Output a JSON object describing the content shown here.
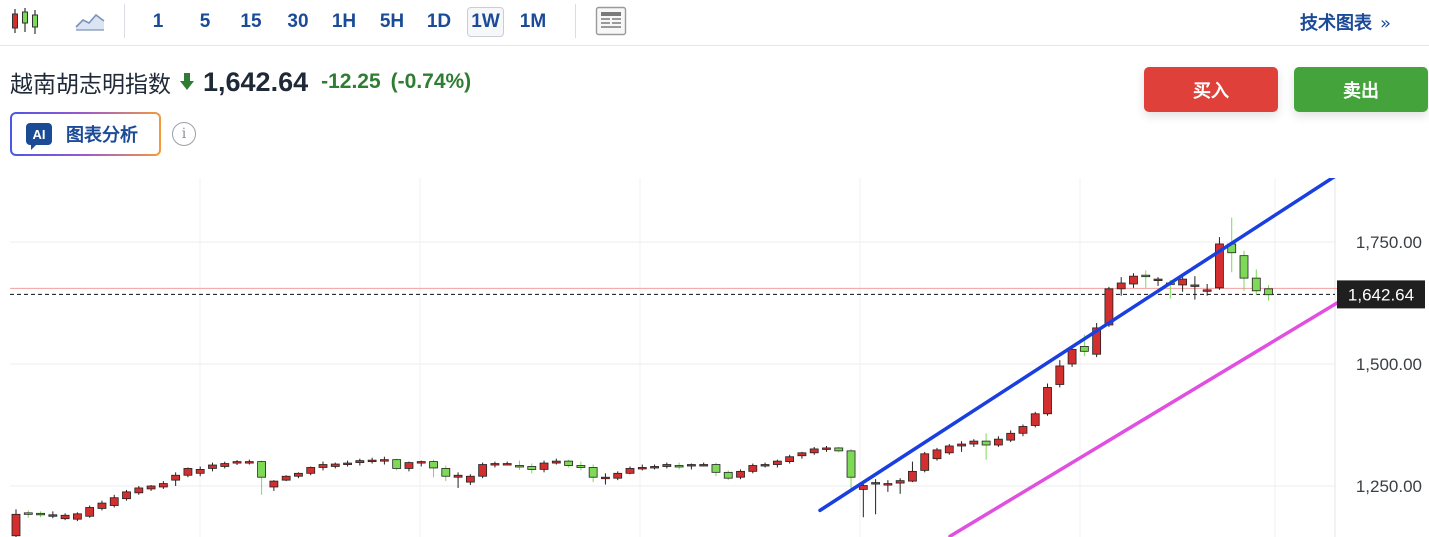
{
  "toolbar": {
    "periods": [
      "1",
      "5",
      "15",
      "30",
      "1H",
      "5H",
      "1D",
      "1W",
      "1M"
    ],
    "active_period": "1W",
    "technical_chart_link": "技术图表",
    "technical_chart_chevron": "»"
  },
  "quote": {
    "name": "越南胡志明指数",
    "price": "1,642.64",
    "change": "-12.25",
    "change_pct": "(-0.74%)",
    "direction": "down",
    "change_color": "#2e7d32"
  },
  "ai_button": {
    "badge": "AI",
    "label": "图表分析"
  },
  "info_icon": "i",
  "actions": {
    "buy": "买入",
    "sell": "卖出"
  },
  "colors": {
    "buy": "#e0403a",
    "sell": "#44a33a",
    "up_candle": "#d32f2f",
    "down_candle": "#7ed957",
    "upper_trendline": "#1a3fe0",
    "lower_trendline": "#e04fe0"
  },
  "chart_data": {
    "type": "candlestick",
    "timeframe": "1W",
    "y_ticks": [
      "1,750.00",
      "1,500.00",
      "1,250.00"
    ],
    "y_tick_values": [
      1750,
      1500,
      1250
    ],
    "current_price_label": "1,642.64",
    "current_price": 1642.64,
    "previous_close": 1654.89,
    "candles": [
      [
        1148,
        1202,
        1192,
        1145
      ],
      [
        1195,
        1200,
        1192,
        1185
      ],
      [
        1194,
        1198,
        1191,
        1186
      ],
      [
        1188,
        1198,
        1191,
        1184
      ],
      [
        1183,
        1194,
        1190,
        1180
      ],
      [
        1182,
        1196,
        1193,
        1178
      ],
      [
        1188,
        1210,
        1206,
        1185
      ],
      [
        1204,
        1220,
        1215,
        1200
      ],
      [
        1210,
        1232,
        1226,
        1206
      ],
      [
        1224,
        1242,
        1238,
        1220
      ],
      [
        1236,
        1250,
        1246,
        1232
      ],
      [
        1244,
        1252,
        1250,
        1240
      ],
      [
        1248,
        1260,
        1255,
        1244
      ],
      [
        1262,
        1278,
        1272,
        1250
      ],
      [
        1272,
        1288,
        1286,
        1268
      ],
      [
        1276,
        1290,
        1284,
        1270
      ],
      [
        1286,
        1298,
        1293,
        1280
      ],
      [
        1290,
        1300,
        1296,
        1286
      ],
      [
        1297,
        1303,
        1300,
        1293
      ],
      [
        1300,
        1304,
        1300,
        1294
      ],
      [
        1300,
        1302,
        1268,
        1232
      ],
      [
        1248,
        1262,
        1260,
        1240
      ],
      [
        1262,
        1272,
        1270,
        1260
      ],
      [
        1270,
        1278,
        1276,
        1266
      ],
      [
        1276,
        1290,
        1288,
        1272
      ],
      [
        1288,
        1300,
        1294,
        1282
      ],
      [
        1290,
        1298,
        1295,
        1286
      ],
      [
        1294,
        1302,
        1297,
        1290
      ],
      [
        1298,
        1306,
        1302,
        1292
      ],
      [
        1302,
        1308,
        1303,
        1296
      ],
      [
        1303,
        1310,
        1304,
        1294
      ],
      [
        1304,
        1306,
        1286,
        1282
      ],
      [
        1286,
        1300,
        1298,
        1280
      ],
      [
        1298,
        1302,
        1300,
        1290
      ],
      [
        1300,
        1304,
        1287,
        1268
      ],
      [
        1286,
        1292,
        1270,
        1260
      ],
      [
        1268,
        1278,
        1272,
        1246
      ],
      [
        1258,
        1274,
        1270,
        1252
      ],
      [
        1270,
        1298,
        1294,
        1266
      ],
      [
        1294,
        1300,
        1296,
        1288
      ],
      [
        1296,
        1300,
        1296,
        1293
      ],
      [
        1292,
        1302,
        1290,
        1283
      ],
      [
        1290,
        1296,
        1284,
        1276
      ],
      [
        1284,
        1302,
        1297,
        1278
      ],
      [
        1297,
        1306,
        1301,
        1294
      ],
      [
        1301,
        1304,
        1292,
        1288
      ],
      [
        1292,
        1300,
        1288,
        1282
      ],
      [
        1288,
        1294,
        1268,
        1258
      ],
      [
        1268,
        1276,
        1268,
        1253
      ],
      [
        1266,
        1280,
        1276,
        1262
      ],
      [
        1276,
        1290,
        1286,
        1274
      ],
      [
        1286,
        1294,
        1288,
        1282
      ],
      [
        1288,
        1294,
        1290,
        1284
      ],
      [
        1290,
        1298,
        1294,
        1286
      ],
      [
        1292,
        1298,
        1290,
        1284
      ],
      [
        1292,
        1296,
        1294,
        1284
      ],
      [
        1294,
        1298,
        1294,
        1290
      ],
      [
        1294,
        1298,
        1278,
        1270
      ],
      [
        1278,
        1282,
        1266,
        1262
      ],
      [
        1268,
        1284,
        1280,
        1264
      ],
      [
        1280,
        1296,
        1292,
        1276
      ],
      [
        1292,
        1298,
        1294,
        1288
      ],
      [
        1294,
        1304,
        1301,
        1288
      ],
      [
        1300,
        1314,
        1310,
        1296
      ],
      [
        1312,
        1320,
        1318,
        1306
      ],
      [
        1318,
        1330,
        1326,
        1314
      ],
      [
        1326,
        1332,
        1328,
        1320
      ],
      [
        1328,
        1330,
        1322,
        1319
      ],
      [
        1322,
        1326,
        1268,
        1240
      ],
      [
        1243,
        1254,
        1251,
        1186
      ],
      [
        1254,
        1264,
        1257,
        1192
      ],
      [
        1254,
        1262,
        1255,
        1238
      ],
      [
        1256,
        1266,
        1261,
        1234
      ],
      [
        1260,
        1300,
        1280,
        1258
      ],
      [
        1282,
        1320,
        1316,
        1278
      ],
      [
        1306,
        1328,
        1324,
        1302
      ],
      [
        1318,
        1336,
        1332,
        1314
      ],
      [
        1332,
        1342,
        1336,
        1320
      ],
      [
        1336,
        1346,
        1342,
        1330
      ],
      [
        1342,
        1358,
        1334,
        1304
      ],
      [
        1334,
        1352,
        1346,
        1330
      ],
      [
        1344,
        1364,
        1358,
        1340
      ],
      [
        1358,
        1376,
        1372,
        1352
      ],
      [
        1374,
        1402,
        1398,
        1370
      ],
      [
        1398,
        1460,
        1452,
        1394
      ],
      [
        1458,
        1508,
        1496,
        1452
      ],
      [
        1500,
        1538,
        1530,
        1494
      ],
      [
        1536,
        1560,
        1526,
        1516
      ],
      [
        1520,
        1584,
        1574,
        1514
      ],
      [
        1580,
        1658,
        1654,
        1576
      ],
      [
        1654,
        1678,
        1666,
        1640
      ],
      [
        1664,
        1686,
        1680,
        1656
      ],
      [
        1682,
        1692,
        1680,
        1656
      ],
      [
        1672,
        1678,
        1674,
        1660
      ],
      [
        1666,
        1672,
        1664,
        1634
      ],
      [
        1662,
        1678,
        1674,
        1648
      ],
      [
        1660,
        1680,
        1662,
        1632
      ],
      [
        1652,
        1664,
        1652,
        1640
      ],
      [
        1656,
        1760,
        1746,
        1652
      ],
      [
        1746,
        1800,
        1728,
        1688
      ],
      [
        1722,
        1732,
        1676,
        1650
      ],
      [
        1676,
        1694,
        1650,
        1642
      ],
      [
        1654,
        1662,
        1642,
        1630
      ]
    ],
    "trendlines": [
      {
        "name": "upper",
        "color": "#1a3fe0",
        "from": [
          0,
          1200
        ],
        "to": [
          1,
          1902
        ]
      },
      {
        "name": "lower",
        "color": "#e04fe0",
        "from": [
          0,
          1147
        ],
        "to": [
          1,
          1667
        ]
      }
    ]
  }
}
